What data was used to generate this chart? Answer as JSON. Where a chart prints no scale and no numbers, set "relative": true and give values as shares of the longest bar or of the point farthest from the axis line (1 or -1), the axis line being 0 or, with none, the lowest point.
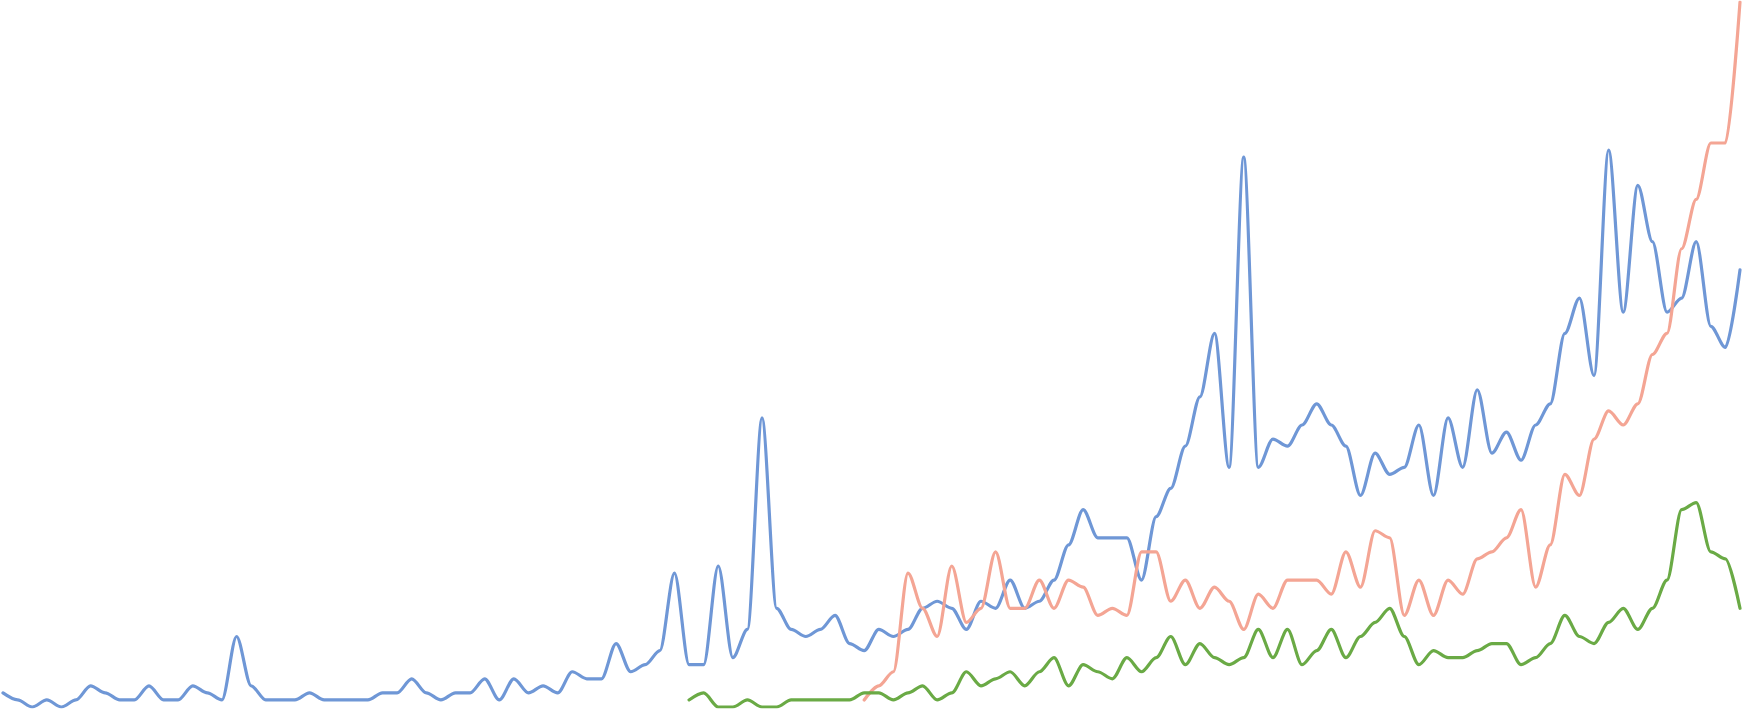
{
  "chart_data": {
    "type": "line",
    "relative": true,
    "grid": false,
    "marker": "none",
    "line_style": "solid",
    "categories": [
      null,
      null,
      null,
      null,
      null,
      null,
      null,
      null,
      null,
      null,
      null,
      null,
      null,
      null,
      null,
      null,
      null,
      null,
      null,
      null,
      null,
      null,
      null,
      null,
      null,
      null,
      null,
      null,
      null,
      null,
      null,
      null,
      null,
      null,
      null,
      null,
      null,
      null,
      null,
      null,
      null,
      null,
      null,
      null,
      null,
      null,
      null,
      null,
      null,
      null,
      null,
      null,
      null,
      null,
      null,
      null,
      null,
      null,
      null,
      null,
      null,
      null,
      null,
      null,
      null,
      null,
      null,
      null,
      null,
      null,
      null,
      null,
      null,
      null,
      null,
      null,
      null,
      null,
      null,
      null,
      null,
      null,
      null,
      null,
      null,
      null,
      null,
      null,
      null,
      null,
      null,
      null,
      null,
      null,
      null,
      null,
      null,
      null,
      null,
      null,
      null,
      null,
      null,
      null,
      null,
      null,
      null,
      null,
      null,
      null,
      null,
      null,
      null,
      null,
      null,
      null,
      null,
      null,
      null,
      null
    ],
    "series": [
      {
        "color": "#6f97d6",
        "values": [
          0.02,
          0.01,
          0,
          0.01,
          0,
          0.01,
          0.03,
          0.02,
          0.01,
          0.01,
          0.03,
          0.01,
          0.01,
          0.03,
          0.02,
          0.01,
          0.1,
          0.03,
          0.01,
          0.01,
          0.01,
          0.02,
          0.01,
          0.01,
          0.01,
          0.01,
          0.02,
          0.02,
          0.04,
          0.02,
          0.01,
          0.02,
          0.02,
          0.04,
          0.01,
          0.04,
          0.02,
          0.03,
          0.02,
          0.05,
          0.04,
          0.04,
          0.09,
          0.05,
          0.06,
          0.08,
          0.19,
          0.06,
          0.06,
          0.2,
          0.07,
          0.11,
          0.41,
          0.14,
          0.11,
          0.1,
          0.11,
          0.13,
          0.09,
          0.08,
          0.11,
          0.1,
          0.11,
          0.14,
          0.15,
          0.14,
          0.11,
          0.15,
          0.14,
          0.18,
          0.14,
          0.15,
          0.18,
          0.23,
          0.28,
          0.24,
          0.24,
          0.24,
          0.18,
          0.27,
          0.31,
          0.37,
          0.44,
          0.53,
          0.34,
          0.78,
          0.34,
          0.38,
          0.37,
          0.4,
          0.43,
          0.4,
          0.37,
          0.3,
          0.36,
          0.33,
          0.34,
          0.4,
          0.3,
          0.41,
          0.34,
          0.45,
          0.36,
          0.39,
          0.35,
          0.4,
          0.43,
          0.53,
          0.58,
          0.47,
          0.79,
          0.56,
          0.74,
          0.66,
          0.56,
          0.58,
          0.66,
          0.54,
          0.51,
          0.62
        ]
      },
      {
        "color": "#f4a594",
        "values": [
          null,
          null,
          null,
          null,
          null,
          null,
          null,
          null,
          null,
          null,
          null,
          null,
          null,
          null,
          null,
          null,
          null,
          null,
          null,
          null,
          null,
          null,
          null,
          null,
          null,
          null,
          null,
          null,
          null,
          null,
          null,
          null,
          null,
          null,
          null,
          null,
          null,
          null,
          null,
          null,
          null,
          null,
          null,
          null,
          null,
          null,
          null,
          null,
          null,
          null,
          null,
          null,
          null,
          null,
          null,
          null,
          null,
          null,
          null,
          0.01,
          0.03,
          0.05,
          0.19,
          0.14,
          0.1,
          0.2,
          0.12,
          0.14,
          0.22,
          0.14,
          0.14,
          0.18,
          0.14,
          0.18,
          0.17,
          0.13,
          0.14,
          0.13,
          0.22,
          0.22,
          0.15,
          0.18,
          0.14,
          0.17,
          0.15,
          0.11,
          0.16,
          0.14,
          0.18,
          0.18,
          0.18,
          0.16,
          0.22,
          0.17,
          0.25,
          0.24,
          0.13,
          0.18,
          0.13,
          0.18,
          0.16,
          0.21,
          0.22,
          0.24,
          0.28,
          0.17,
          0.23,
          0.33,
          0.3,
          0.38,
          0.42,
          0.4,
          0.43,
          0.5,
          0.53,
          0.65,
          0.72,
          0.8,
          0.8,
          1
        ]
      },
      {
        "color": "#6aaa45",
        "values": [
          null,
          null,
          null,
          null,
          null,
          null,
          null,
          null,
          null,
          null,
          null,
          null,
          null,
          null,
          null,
          null,
          null,
          null,
          null,
          null,
          null,
          null,
          null,
          null,
          null,
          null,
          null,
          null,
          null,
          null,
          null,
          null,
          null,
          null,
          null,
          null,
          null,
          null,
          null,
          null,
          null,
          null,
          null,
          null,
          null,
          null,
          null,
          0.01,
          0.02,
          0,
          0,
          0.01,
          0,
          0,
          0.01,
          0.01,
          0.01,
          0.01,
          0.01,
          0.02,
          0.02,
          0.01,
          0.02,
          0.03,
          0.01,
          0.02,
          0.05,
          0.03,
          0.04,
          0.05,
          0.03,
          0.05,
          0.07,
          0.03,
          0.06,
          0.05,
          0.04,
          0.07,
          0.05,
          0.07,
          0.1,
          0.06,
          0.09,
          0.07,
          0.06,
          0.07,
          0.11,
          0.07,
          0.11,
          0.06,
          0.08,
          0.11,
          0.07,
          0.1,
          0.12,
          0.14,
          0.1,
          0.06,
          0.08,
          0.07,
          0.07,
          0.08,
          0.09,
          0.09,
          0.06,
          0.07,
          0.09,
          0.13,
          0.1,
          0.09,
          0.12,
          0.14,
          0.11,
          0.14,
          0.18,
          0.28,
          0.29,
          0.22,
          0.21,
          0.14
        ]
      }
    ]
  }
}
